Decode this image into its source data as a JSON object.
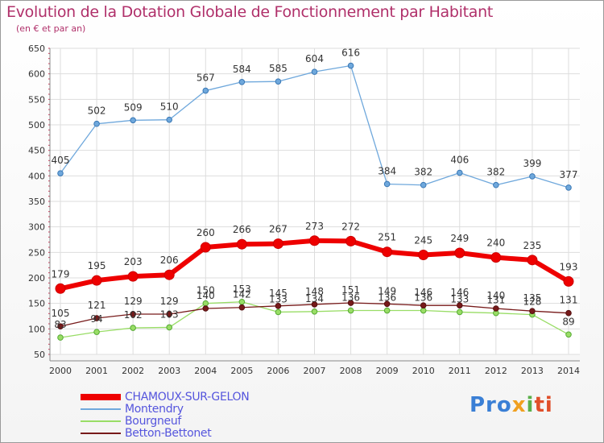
{
  "title": "Evolution de la Dotation Globale de Fonctionnement par Habitant",
  "subtitle": "(en € et par an)",
  "logo": {
    "p1": "Pro",
    "p2": "x",
    "p3": "i",
    "p4": "ti"
  },
  "chart_data": {
    "type": "line",
    "title": "Evolution de la Dotation Globale de Fonctionnement par Habitant",
    "subtitle": "(en € et par an)",
    "x": [
      "2000",
      "2001",
      "2002",
      "2003",
      "2004",
      "2005",
      "2006",
      "2007",
      "2008",
      "2009",
      "2010",
      "2011",
      "2012",
      "2013",
      "2014"
    ],
    "ylim": [
      50,
      650
    ],
    "yticks": [
      50,
      100,
      150,
      200,
      250,
      300,
      350,
      400,
      450,
      500,
      550,
      600,
      650
    ],
    "grid": true,
    "legend_position": "bottom-left",
    "series": [
      {
        "name": "CHAMOUX-SUR-GELON",
        "color": "#ee0000",
        "values": [
          179,
          195,
          203,
          206,
          260,
          266,
          267,
          273,
          272,
          251,
          245,
          249,
          240,
          235,
          193
        ]
      },
      {
        "name": "Montendry",
        "color": "#6fa8dc",
        "values": [
          405,
          502,
          509,
          510,
          567,
          584,
          585,
          604,
          616,
          384,
          382,
          406,
          382,
          399,
          377
        ]
      },
      {
        "name": "Bourgneuf",
        "color": "#99dd66",
        "values": [
          83,
          94,
          102,
          103,
          150,
          153,
          133,
          134,
          136,
          136,
          136,
          133,
          131,
          128,
          89
        ]
      },
      {
        "name": "Betton-Bettonet",
        "color": "#771a1a",
        "values": [
          105,
          121,
          129,
          129,
          140,
          142,
          145,
          148,
          151,
          149,
          146,
          146,
          140,
          135,
          131
        ]
      }
    ]
  }
}
